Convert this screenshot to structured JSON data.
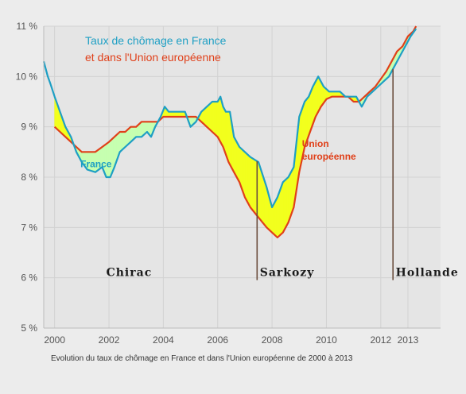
{
  "caption": "Evolution du taux de chômage en France et dans l'Union européenne de 2000 à 2013",
  "chart_data": {
    "type": "line",
    "title_lines": [
      "Taux de chômage en France",
      "et dans l'Union européenne"
    ],
    "title_colors": [
      "#1e9fc4",
      "#e0401a"
    ],
    "x_ticks": [
      2000,
      2002,
      2004,
      2006,
      2008,
      2010,
      2012,
      2013
    ],
    "y_ticks": [
      5,
      6,
      7,
      8,
      9,
      10,
      11
    ],
    "y_tick_labels": [
      "5 %",
      "6 %",
      "7 %",
      "8 %",
      "9 %",
      "10 %",
      "11 %"
    ],
    "xlim": [
      1999.6,
      2014.2
    ],
    "ylim": [
      5,
      11
    ],
    "grid": true,
    "colors": {
      "france": "#1e9fc4",
      "eu": "#e0401a",
      "fill_france_higher": "#f2ff1e",
      "fill_eu_higher": "#c6ffb0",
      "marker": "#6b4e3e"
    },
    "series": [
      {
        "key": "france",
        "name": "France",
        "x": [
          1999.6,
          1999.75,
          1999.85,
          2000.0,
          2000.2,
          2000.4,
          2000.6,
          2000.8,
          2001.0,
          2001.2,
          2001.5,
          2001.75,
          2001.9,
          2002.05,
          2002.2,
          2002.4,
          2002.6,
          2002.8,
          2003.0,
          2003.2,
          2003.4,
          2003.55,
          2003.7,
          2003.9,
          2004.05,
          2004.2,
          2004.4,
          2004.6,
          2004.8,
          2005.0,
          2005.2,
          2005.4,
          2005.6,
          2005.8,
          2006.0,
          2006.1,
          2006.2,
          2006.3,
          2006.45,
          2006.6,
          2006.8,
          2007.0,
          2007.2,
          2007.5,
          2007.8,
          2008.0,
          2008.2,
          2008.4,
          2008.6,
          2008.8,
          2009.0,
          2009.2,
          2009.35,
          2009.5,
          2009.7,
          2009.9,
          2010.1,
          2010.3,
          2010.5,
          2010.7,
          2010.9,
          2011.1,
          2011.3,
          2011.5,
          2011.7,
          2011.9,
          2012.1,
          2012.3,
          2012.5,
          2012.7,
          2012.9,
          2013.1,
          2013.3
        ],
        "y": [
          10.3,
          10.0,
          9.85,
          9.6,
          9.3,
          9.0,
          8.8,
          8.5,
          8.3,
          8.15,
          8.1,
          8.2,
          8.0,
          8.0,
          8.2,
          8.5,
          8.6,
          8.7,
          8.8,
          8.8,
          8.9,
          8.8,
          9.0,
          9.2,
          9.4,
          9.3,
          9.3,
          9.3,
          9.3,
          9.0,
          9.1,
          9.3,
          9.4,
          9.5,
          9.5,
          9.6,
          9.4,
          9.3,
          9.3,
          8.8,
          8.6,
          8.5,
          8.4,
          8.3,
          7.8,
          7.4,
          7.6,
          7.9,
          8.0,
          8.2,
          9.2,
          9.5,
          9.6,
          9.8,
          10.0,
          9.8,
          9.7,
          9.7,
          9.7,
          9.6,
          9.6,
          9.6,
          9.4,
          9.6,
          9.7,
          9.8,
          9.9,
          10.0,
          10.2,
          10.4,
          10.6,
          10.8,
          10.95
        ]
      },
      {
        "key": "eu",
        "name": "Union européenne",
        "x": [
          2000.0,
          2000.2,
          2000.4,
          2000.6,
          2000.8,
          2001.0,
          2001.2,
          2001.5,
          2001.75,
          2002.0,
          2002.2,
          2002.4,
          2002.6,
          2002.8,
          2003.0,
          2003.2,
          2003.4,
          2003.6,
          2003.8,
          2004.0,
          2004.2,
          2004.4,
          2004.6,
          2004.8,
          2005.0,
          2005.2,
          2005.4,
          2005.6,
          2005.8,
          2006.0,
          2006.2,
          2006.4,
          2006.6,
          2006.8,
          2007.0,
          2007.2,
          2007.5,
          2007.8,
          2008.0,
          2008.2,
          2008.4,
          2008.6,
          2008.8,
          2009.0,
          2009.2,
          2009.4,
          2009.6,
          2009.8,
          2010.0,
          2010.2,
          2010.4,
          2010.6,
          2010.8,
          2011.0,
          2011.2,
          2011.4,
          2011.6,
          2011.8,
          2012.0,
          2012.2,
          2012.4,
          2012.6,
          2012.8,
          2013.0,
          2013.2,
          2013.3
        ],
        "y": [
          9.0,
          8.9,
          8.8,
          8.7,
          8.6,
          8.5,
          8.5,
          8.5,
          8.6,
          8.7,
          8.8,
          8.9,
          8.9,
          9.0,
          9.0,
          9.1,
          9.1,
          9.1,
          9.1,
          9.2,
          9.2,
          9.2,
          9.2,
          9.2,
          9.2,
          9.2,
          9.1,
          9.0,
          8.9,
          8.8,
          8.6,
          8.3,
          8.1,
          7.9,
          7.6,
          7.4,
          7.2,
          7.0,
          6.9,
          6.8,
          6.9,
          7.1,
          7.4,
          8.1,
          8.6,
          8.9,
          9.2,
          9.4,
          9.55,
          9.6,
          9.6,
          9.6,
          9.6,
          9.5,
          9.5,
          9.6,
          9.7,
          9.8,
          9.95,
          10.1,
          10.3,
          10.5,
          10.6,
          10.8,
          10.9,
          11.0
        ]
      }
    ],
    "series_labels": [
      {
        "key": "france",
        "lines": [
          "France"
        ],
        "at": [
          2000.95,
          8.2
        ]
      },
      {
        "key": "eu",
        "lines": [
          "Union",
          "européenne"
        ],
        "at": [
          2009.1,
          8.6
        ]
      }
    ],
    "events": [
      {
        "label": "Chirac",
        "marker_x": null,
        "label_x": 2001.9
      },
      {
        "label": "Sarkozy",
        "marker_x": 2007.45,
        "label_x": 2007.55
      },
      {
        "label": "Hollande",
        "marker_x": 2012.45,
        "label_x": 2012.55
      }
    ]
  }
}
